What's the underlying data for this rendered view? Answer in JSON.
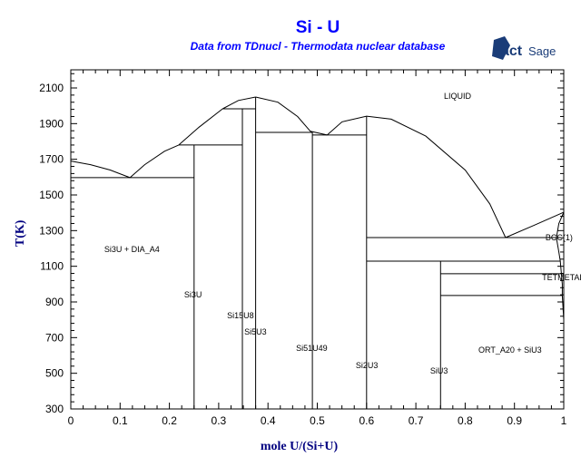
{
  "chart_data": {
    "type": "line",
    "title": "Si - U",
    "subtitle": "Data from TDnucl - Thermodata nuclear database",
    "logo_text": "FactSage",
    "xlabel": "mole U/(Si+U)",
    "ylabel": "T(K)",
    "xlim": [
      0,
      1
    ],
    "ylim": [
      300,
      2100
    ],
    "x_ticks": [
      0,
      0.1,
      0.2,
      0.3,
      0.4,
      0.5,
      0.6,
      0.7,
      0.8,
      0.9,
      1
    ],
    "x_tick_labels": [
      "0",
      "0.1",
      "0.2",
      "0.3",
      "0.4",
      "0.5",
      "0.6",
      "0.7",
      "0.8",
      "0.9",
      "1"
    ],
    "y_ticks": [
      300,
      500,
      700,
      900,
      1100,
      1300,
      1500,
      1700,
      1900,
      2100
    ],
    "grid": false,
    "colors": {
      "title": "#0000ff",
      "axis_label": "#000080",
      "lines": "#000000",
      "logo": "#1a3c78"
    },
    "phase_boundaries": [
      {
        "points": [
          [
            0,
            1690
          ],
          [
            0.04,
            1670
          ],
          [
            0.08,
            1640
          ],
          [
            0.12,
            1597
          ]
        ]
      },
      {
        "points": [
          [
            0.12,
            1597
          ],
          [
            0.15,
            1670
          ],
          [
            0.19,
            1745
          ],
          [
            0.219,
            1780
          ]
        ]
      },
      {
        "points": [
          [
            0.219,
            1780
          ],
          [
            0.26,
            1880
          ],
          [
            0.308,
            1983
          ]
        ]
      },
      {
        "points": [
          [
            0.308,
            1983
          ],
          [
            0.34,
            2030
          ],
          [
            0.375,
            2049
          ]
        ]
      },
      {
        "points": [
          [
            0.375,
            2049
          ],
          [
            0.42,
            2020
          ],
          [
            0.46,
            1940
          ],
          [
            0.486,
            1857
          ],
          [
            0.52,
            1836
          ]
        ]
      },
      {
        "points": [
          [
            0.52,
            1836
          ],
          [
            0.55,
            1910
          ],
          [
            0.6,
            1942
          ],
          [
            0.65,
            1925
          ],
          [
            0.72,
            1830
          ],
          [
            0.8,
            1640
          ],
          [
            0.85,
            1450
          ],
          [
            0.882,
            1261
          ]
        ]
      },
      {
        "points": [
          [
            0.882,
            1261
          ],
          [
            0.94,
            1330
          ],
          [
            1,
            1403
          ]
        ]
      },
      {
        "points": [
          [
            1,
            1403
          ],
          [
            0.99,
            1340
          ],
          [
            0.985,
            1260
          ],
          [
            0.99,
            1180
          ],
          [
            0.993,
            1129
          ]
        ]
      },
      {
        "points": [
          [
            0.993,
            1129
          ],
          [
            0.997,
            1000
          ],
          [
            0.997,
            936
          ],
          [
            1,
            800
          ],
          [
            1,
            720
          ]
        ]
      },
      {
        "points": [
          [
            0,
            1597
          ],
          [
            0.25,
            1597
          ]
        ]
      },
      {
        "points": [
          [
            0.219,
            1780
          ],
          [
            0.348,
            1780
          ]
        ]
      },
      {
        "points": [
          [
            0.308,
            1983
          ],
          [
            0.375,
            1983
          ]
        ]
      },
      {
        "points": [
          [
            0.375,
            1851
          ],
          [
            0.49,
            1851
          ]
        ]
      },
      {
        "points": [
          [
            0.49,
            1836
          ],
          [
            0.6,
            1836
          ]
        ]
      },
      {
        "points": [
          [
            0.6,
            1261
          ],
          [
            0.993,
            1261
          ]
        ]
      },
      {
        "points": [
          [
            0.6,
            1129
          ],
          [
            0.993,
            1129
          ]
        ]
      },
      {
        "points": [
          [
            0.75,
            1058
          ],
          [
            1,
            1058
          ]
        ]
      },
      {
        "points": [
          [
            0.75,
            936
          ],
          [
            0.997,
            936
          ]
        ]
      },
      {
        "points": [
          [
            0.25,
            300
          ],
          [
            0.25,
            1780
          ]
        ]
      },
      {
        "points": [
          [
            0.348,
            300
          ],
          [
            0.348,
            1983
          ]
        ]
      },
      {
        "points": [
          [
            0.375,
            300
          ],
          [
            0.375,
            2049
          ]
        ]
      },
      {
        "points": [
          [
            0.49,
            300
          ],
          [
            0.49,
            1851
          ]
        ]
      },
      {
        "points": [
          [
            0.6,
            300
          ],
          [
            0.6,
            1942
          ]
        ]
      },
      {
        "points": [
          [
            0.75,
            300
          ],
          [
            0.75,
            1129
          ]
        ]
      }
    ],
    "annotations": [
      {
        "text": "LIQUID",
        "x": 0.757,
        "y": 2054
      },
      {
        "text": "Si3U + DIA_A4",
        "x": 0.068,
        "y": 1195
      },
      {
        "text": "Si3U",
        "x": 0.23,
        "y": 941
      },
      {
        "text": "Si15U8",
        "x": 0.317,
        "y": 824
      },
      {
        "text": "Si5U3",
        "x": 0.352,
        "y": 732
      },
      {
        "text": "Si51U49",
        "x": 0.457,
        "y": 641
      },
      {
        "text": "Si2U3",
        "x": 0.578,
        "y": 544
      },
      {
        "text": "SiU3",
        "x": 0.729,
        "y": 514
      },
      {
        "text": "ORT_A20 + SiU3",
        "x": 0.827,
        "y": 631
      },
      {
        "text": "BCC(1)",
        "x": 0.963,
        "y": 1261
      },
      {
        "text": "TETMETAL",
        "x": 0.956,
        "y": 1037
      }
    ]
  }
}
